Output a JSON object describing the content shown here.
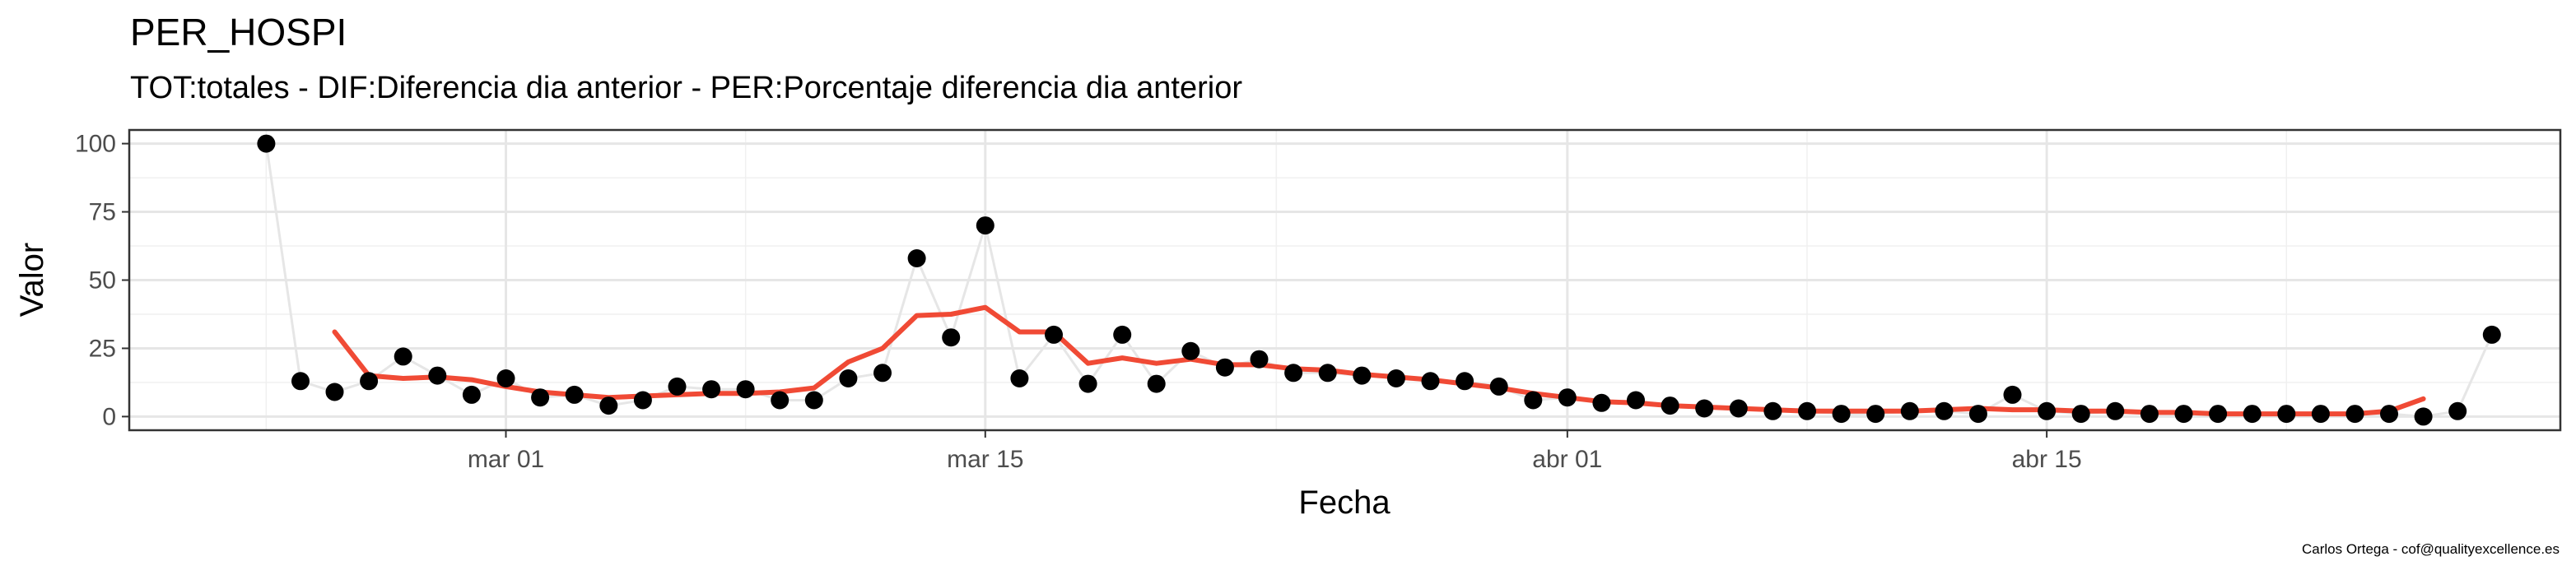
{
  "chart_data": {
    "type": "line",
    "title": "PER_HOSPI",
    "subtitle": "TOT:totales - DIF:Diferencia dia anterior - PER:Porcentaje diferencia dia anterior",
    "xlabel": "Fecha",
    "ylabel": "Valor",
    "x_range": [
      "2020-02-19",
      "2020-04-30"
    ],
    "ylim": [
      -5,
      105
    ],
    "x_ticks": [
      {
        "date": "2020-03-01",
        "label": "mar 01"
      },
      {
        "date": "2020-03-15",
        "label": "mar 15"
      },
      {
        "date": "2020-04-01",
        "label": "abr 01"
      },
      {
        "date": "2020-04-15",
        "label": "abr 15"
      }
    ],
    "y_ticks": [
      0,
      25,
      50,
      75,
      100
    ],
    "grid": true,
    "series": [
      {
        "kind": "points-with-line",
        "color": "#000000",
        "line_color": "#e6e6e6",
        "points": [
          [
            "2020-02-23",
            100
          ],
          [
            "2020-02-24",
            13
          ],
          [
            "2020-02-25",
            9
          ],
          [
            "2020-02-26",
            13
          ],
          [
            "2020-02-27",
            22
          ],
          [
            "2020-02-28",
            15
          ],
          [
            "2020-02-29",
            8
          ],
          [
            "2020-03-01",
            14
          ],
          [
            "2020-03-02",
            7
          ],
          [
            "2020-03-03",
            8
          ],
          [
            "2020-03-04",
            4
          ],
          [
            "2020-03-05",
            6
          ],
          [
            "2020-03-06",
            11
          ],
          [
            "2020-03-07",
            10
          ],
          [
            "2020-03-08",
            10
          ],
          [
            "2020-03-09",
            6
          ],
          [
            "2020-03-10",
            6
          ],
          [
            "2020-03-11",
            14
          ],
          [
            "2020-03-12",
            16
          ],
          [
            "2020-03-13",
            58
          ],
          [
            "2020-03-14",
            29
          ],
          [
            "2020-03-15",
            70
          ],
          [
            "2020-03-16",
            14
          ],
          [
            "2020-03-17",
            30
          ],
          [
            "2020-03-18",
            12
          ],
          [
            "2020-03-19",
            30
          ],
          [
            "2020-03-20",
            12
          ],
          [
            "2020-03-21",
            24
          ],
          [
            "2020-03-22",
            18
          ],
          [
            "2020-03-23",
            21
          ],
          [
            "2020-03-24",
            16
          ],
          [
            "2020-03-25",
            16
          ],
          [
            "2020-03-26",
            15
          ],
          [
            "2020-03-27",
            14
          ],
          [
            "2020-03-28",
            13
          ],
          [
            "2020-03-29",
            13
          ],
          [
            "2020-03-30",
            11
          ],
          [
            "2020-03-31",
            6
          ],
          [
            "2020-04-01",
            7
          ],
          [
            "2020-04-02",
            5
          ],
          [
            "2020-04-03",
            6
          ],
          [
            "2020-04-04",
            4
          ],
          [
            "2020-04-05",
            3
          ],
          [
            "2020-04-06",
            3
          ],
          [
            "2020-04-07",
            2
          ],
          [
            "2020-04-08",
            2
          ],
          [
            "2020-04-09",
            1
          ],
          [
            "2020-04-10",
            1
          ],
          [
            "2020-04-11",
            2
          ],
          [
            "2020-04-12",
            2
          ],
          [
            "2020-04-13",
            1
          ],
          [
            "2020-04-14",
            8
          ],
          [
            "2020-04-15",
            2
          ],
          [
            "2020-04-16",
            1
          ],
          [
            "2020-04-17",
            2
          ],
          [
            "2020-04-18",
            1
          ],
          [
            "2020-04-19",
            1
          ],
          [
            "2020-04-20",
            1
          ],
          [
            "2020-04-21",
            1
          ],
          [
            "2020-04-22",
            1
          ],
          [
            "2020-04-23",
            1
          ],
          [
            "2020-04-24",
            1
          ],
          [
            "2020-04-25",
            1
          ],
          [
            "2020-04-26",
            0
          ],
          [
            "2020-04-27",
            2
          ],
          [
            "2020-04-28",
            30
          ]
        ]
      },
      {
        "kind": "smoothed-line",
        "color": "#f04a35",
        "points": [
          [
            "2020-02-25",
            31
          ],
          [
            "2020-02-26",
            15
          ],
          [
            "2020-02-27",
            14
          ],
          [
            "2020-02-28",
            14.5
          ],
          [
            "2020-02-29",
            13.5
          ],
          [
            "2020-03-01",
            11
          ],
          [
            "2020-03-02",
            9
          ],
          [
            "2020-03-03",
            8
          ],
          [
            "2020-03-04",
            7
          ],
          [
            "2020-03-05",
            7.5
          ],
          [
            "2020-03-06",
            8
          ],
          [
            "2020-03-07",
            8.5
          ],
          [
            "2020-03-08",
            8.5
          ],
          [
            "2020-03-09",
            9
          ],
          [
            "2020-03-10",
            10.5
          ],
          [
            "2020-03-11",
            20
          ],
          [
            "2020-03-12",
            25
          ],
          [
            "2020-03-13",
            37
          ],
          [
            "2020-03-14",
            37.5
          ],
          [
            "2020-03-15",
            40
          ],
          [
            "2020-03-16",
            31
          ],
          [
            "2020-03-17",
            31
          ],
          [
            "2020-03-18",
            19.5
          ],
          [
            "2020-03-19",
            21.5
          ],
          [
            "2020-03-20",
            19.5
          ],
          [
            "2020-03-21",
            21
          ],
          [
            "2020-03-22",
            19
          ],
          [
            "2020-03-23",
            19
          ],
          [
            "2020-03-24",
            17.5
          ],
          [
            "2020-03-25",
            17
          ],
          [
            "2020-03-26",
            15.5
          ],
          [
            "2020-03-27",
            14.5
          ],
          [
            "2020-03-28",
            13.5
          ],
          [
            "2020-03-29",
            12
          ],
          [
            "2020-03-30",
            10.5
          ],
          [
            "2020-03-31",
            8.5
          ],
          [
            "2020-04-01",
            7
          ],
          [
            "2020-04-02",
            5.5
          ],
          [
            "2020-04-03",
            5
          ],
          [
            "2020-04-04",
            4
          ],
          [
            "2020-04-05",
            3.5
          ],
          [
            "2020-04-06",
            3
          ],
          [
            "2020-04-07",
            2.5
          ],
          [
            "2020-04-08",
            2
          ],
          [
            "2020-04-09",
            2
          ],
          [
            "2020-04-10",
            2
          ],
          [
            "2020-04-11",
            2
          ],
          [
            "2020-04-12",
            2.5
          ],
          [
            "2020-04-13",
            3
          ],
          [
            "2020-04-14",
            2.5
          ],
          [
            "2020-04-15",
            2.5
          ],
          [
            "2020-04-16",
            2
          ],
          [
            "2020-04-17",
            2
          ],
          [
            "2020-04-18",
            1.5
          ],
          [
            "2020-04-19",
            1.5
          ],
          [
            "2020-04-20",
            1
          ],
          [
            "2020-04-21",
            1
          ],
          [
            "2020-04-22",
            1
          ],
          [
            "2020-04-23",
            1
          ],
          [
            "2020-04-24",
            1
          ],
          [
            "2020-04-25",
            2
          ],
          [
            "2020-04-26",
            6.5
          ]
        ]
      }
    ]
  },
  "credit": "Carlos Ortega - cof@qualityexcellence.es"
}
